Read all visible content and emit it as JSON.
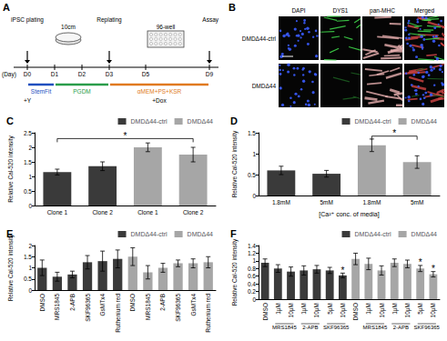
{
  "diagram": {
    "title": "A",
    "day_label": "(Day)",
    "days": [
      "D0",
      "D1",
      "D2",
      "D3",
      "D5",
      "D9"
    ],
    "steps": [
      "iPSC plating",
      "Replating",
      "Assay"
    ],
    "vessels": [
      "10cm",
      "96-well"
    ],
    "media": [
      {
        "label": "StemFit",
        "color": "#1f4fbf"
      },
      {
        "label": "PGDM",
        "color": "#2a9d4a"
      },
      {
        "label": "αMEM+PS+KSR",
        "color": "#e07a20"
      }
    ],
    "additions": [
      "+Y",
      "+Dox"
    ]
  },
  "images": {
    "title": "B",
    "columns": [
      "DAPI",
      "DYS1",
      "pan-MHC",
      "Merged"
    ],
    "rows": [
      "DMDΔ44-ctrl",
      "DMDΔ44"
    ]
  },
  "chart_data": [
    {
      "type": "bar",
      "title": "C",
      "y_label": "Relative Cal-520 intensity",
      "categories": [
        "Clone 1",
        "Clone 2",
        "Clone 1",
        "Clone 2"
      ],
      "series": [
        {
          "name": "DMDΔ44-ctrl",
          "color": "#3a3a3a",
          "values": [
            1.15,
            1.35,
            null,
            null
          ],
          "errors": [
            0.1,
            0.15,
            null,
            null
          ]
        },
        {
          "name": "DMDΔ44",
          "color": "#a6a6a6",
          "values": [
            null,
            null,
            2.0,
            1.75
          ],
          "errors": [
            null,
            null,
            0.15,
            0.25
          ]
        }
      ],
      "ylim": [
        0,
        2.5
      ],
      "yticks": [
        0,
        0.5,
        1,
        1.5,
        2,
        2.5
      ],
      "grid": false,
      "legend": "top",
      "brackets": [
        {
          "label": "*",
          "from": 0,
          "to": 3,
          "y": 2.3
        }
      ]
    },
    {
      "type": "bar",
      "title": "D",
      "y_label": "Relative Cal-520 intensity",
      "x_label": "[Ca²⁺ conc. of media]",
      "categories": [
        "1.8mM",
        "5mM",
        "1.8mM",
        "5mM"
      ],
      "series": [
        {
          "name": "DMDΔ44-ctrl",
          "color": "#3a3a3a",
          "values": [
            0.6,
            0.52,
            null,
            null
          ],
          "errors": [
            0.1,
            0.08,
            null,
            null
          ]
        },
        {
          "name": "DMDΔ44",
          "color": "#a6a6a6",
          "values": [
            null,
            null,
            1.2,
            0.8
          ],
          "errors": [
            null,
            null,
            0.15,
            0.15
          ]
        }
      ],
      "ylim": [
        0,
        1.5
      ],
      "yticks": [
        0,
        0.5,
        1,
        1.5
      ],
      "grid": false,
      "legend": "top",
      "brackets": [
        {
          "label": "*",
          "from": 2,
          "to": 3,
          "y": 1.42
        }
      ]
    },
    {
      "type": "bar",
      "title": "E",
      "y_label": "Relative Cal-520 intensity",
      "categories": [
        "DMSO",
        "MRS1845",
        "2-APB",
        "SKF96365",
        "GsMTx4",
        "Ruthenium red",
        "DMSO",
        "MRS1845",
        "2-APB",
        "SKF96365",
        "GsMTx4",
        "Ruthenium red"
      ],
      "series": [
        {
          "name": "DMDΔ44-ctrl",
          "color": "#3a3a3a",
          "values": [
            1.0,
            0.6,
            0.7,
            1.25,
            1.3,
            1.4,
            null,
            null,
            null,
            null,
            null,
            null
          ],
          "errors": [
            0.35,
            0.2,
            0.15,
            0.3,
            0.45,
            0.4,
            null,
            null,
            null,
            null,
            null,
            null
          ]
        },
        {
          "name": "DMDΔ44",
          "color": "#a6a6a6",
          "values": [
            null,
            null,
            null,
            null,
            null,
            null,
            1.5,
            0.8,
            1.0,
            1.2,
            1.2,
            1.25
          ],
          "errors": [
            null,
            null,
            null,
            null,
            null,
            null,
            0.4,
            0.3,
            0.2,
            0.15,
            0.2,
            0.25
          ]
        }
      ],
      "ylim": [
        0,
        2
      ],
      "yticks": [
        0,
        0.5,
        1,
        1.5,
        2
      ],
      "grid": false,
      "legend": "top"
    },
    {
      "type": "bar",
      "title": "F",
      "y_label": "Relative Cal-520 intensity",
      "categories": [
        "DMSO",
        "1μM",
        "10μM",
        "1μM",
        "10μM",
        "5μM",
        "10μM",
        "DMSO",
        "1μM",
        "10μM",
        "1μM",
        "10μM",
        "5μM",
        "10μM"
      ],
      "series": [
        {
          "name": "DMDΔ44-ctrl",
          "color": "#3a3a3a",
          "values": [
            0.95,
            0.8,
            0.72,
            0.75,
            0.78,
            0.75,
            0.62,
            null,
            null,
            null,
            null,
            null,
            null,
            null
          ],
          "errors": [
            0.1,
            0.1,
            0.12,
            0.12,
            0.1,
            0.08,
            0.06,
            null,
            null,
            null,
            null,
            null,
            null,
            null
          ]
        },
        {
          "name": "DMDΔ44",
          "color": "#a6a6a6",
          "values": [
            null,
            null,
            null,
            null,
            null,
            null,
            null,
            1.05,
            0.92,
            0.75,
            0.95,
            0.92,
            0.8,
            0.65
          ],
          "errors": [
            null,
            null,
            null,
            null,
            null,
            null,
            null,
            0.15,
            0.15,
            0.12,
            0.1,
            0.1,
            0.08,
            0.07
          ]
        }
      ],
      "ylim": [
        0,
        1.4
      ],
      "yticks": [
        0,
        0.2,
        0.4,
        0.6,
        0.8,
        1,
        1.2,
        1.4
      ],
      "grid": false,
      "legend": "top",
      "marks": [
        {
          "label": "*",
          "category": 6
        },
        {
          "label": "*",
          "category": 12
        },
        {
          "label": "*",
          "category": 13
        }
      ],
      "groups": [
        {
          "label": "MRS1845",
          "from": 1,
          "to": 2
        },
        {
          "label": "2-APB",
          "from": 3,
          "to": 4
        },
        {
          "label": "SKF96365",
          "from": 5,
          "to": 6
        },
        {
          "label": "MRS1845",
          "from": 8,
          "to": 9
        },
        {
          "label": "2-APB",
          "from": 10,
          "to": 11
        },
        {
          "label": "SKF96365",
          "from": 12,
          "to": 13
        }
      ]
    }
  ]
}
